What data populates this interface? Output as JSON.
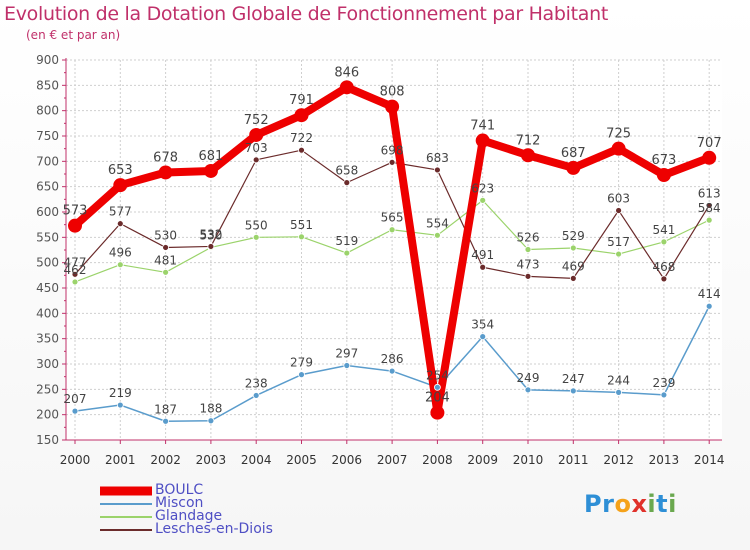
{
  "title": "Evolution de la Dotation Globale de Fonctionnement par Habitant",
  "subtitle": "(en € et par an)",
  "logo": {
    "text": "Proxiti",
    "letters": [
      {
        "ch": "P",
        "color": "#2e8fd6"
      },
      {
        "ch": "r",
        "color": "#2e8fd6"
      },
      {
        "ch": "o",
        "color": "#f5a21a"
      },
      {
        "ch": "x",
        "color": "#e0312b"
      },
      {
        "ch": "i",
        "color": "#6aa84f"
      },
      {
        "ch": "t",
        "color": "#2e8fd6"
      },
      {
        "ch": "i",
        "color": "#6aa84f"
      }
    ]
  },
  "chart_data": {
    "type": "line",
    "x": [
      "2000",
      "2001",
      "2002",
      "2003",
      "2004",
      "2005",
      "2006",
      "2007",
      "2008",
      "2009",
      "2010",
      "2011",
      "2012",
      "2013",
      "2014"
    ],
    "ylim": [
      150,
      900
    ],
    "yticks": [
      150,
      200,
      250,
      300,
      350,
      400,
      450,
      500,
      550,
      600,
      650,
      700,
      750,
      800,
      850,
      900
    ],
    "grid": true,
    "legend_position": "bottom-left",
    "series": [
      {
        "name": "BOULC",
        "color": "#ee0000",
        "values": [
          573,
          653,
          678,
          681,
          752,
          791,
          846,
          808,
          204,
          741,
          712,
          687,
          725,
          673,
          707
        ],
        "labels": [
          "573",
          "653",
          "678",
          "681",
          "752",
          "791",
          "846",
          "808",
          "204",
          "741",
          "712",
          "687",
          "725",
          "673",
          "707"
        ]
      },
      {
        "name": "Miscon",
        "color": "#5a9ccc",
        "values": [
          207,
          219,
          187,
          188,
          238,
          279,
          297,
          286,
          254,
          354,
          249,
          247,
          244,
          239,
          414
        ],
        "labels": [
          "207",
          "219",
          "187",
          "188",
          "238",
          "279",
          "297",
          "286",
          "254",
          "354",
          "249",
          "247",
          "244",
          "239",
          "414"
        ]
      },
      {
        "name": "Glandage",
        "color": "#9bd36b",
        "values": [
          462,
          496,
          481,
          530,
          550,
          551,
          519,
          565,
          554,
          623,
          526,
          529,
          517,
          541,
          584
        ],
        "labels": [
          "462",
          "496",
          "481",
          "530",
          "550",
          "551",
          "519",
          "565",
          "554",
          "623",
          "526",
          "529",
          "517",
          "541",
          "584"
        ]
      },
      {
        "name": "Lesches-en-Diois",
        "color": "#6b2b2b",
        "values": [
          477,
          577,
          530,
          532,
          703,
          722,
          658,
          698,
          683,
          491,
          473,
          469,
          603,
          468,
          613
        ],
        "labels": [
          "477",
          "577",
          "530",
          "532",
          "703",
          "722",
          "658",
          "698",
          "683",
          "491",
          "473",
          "469",
          "603",
          "468",
          "613"
        ]
      }
    ]
  }
}
